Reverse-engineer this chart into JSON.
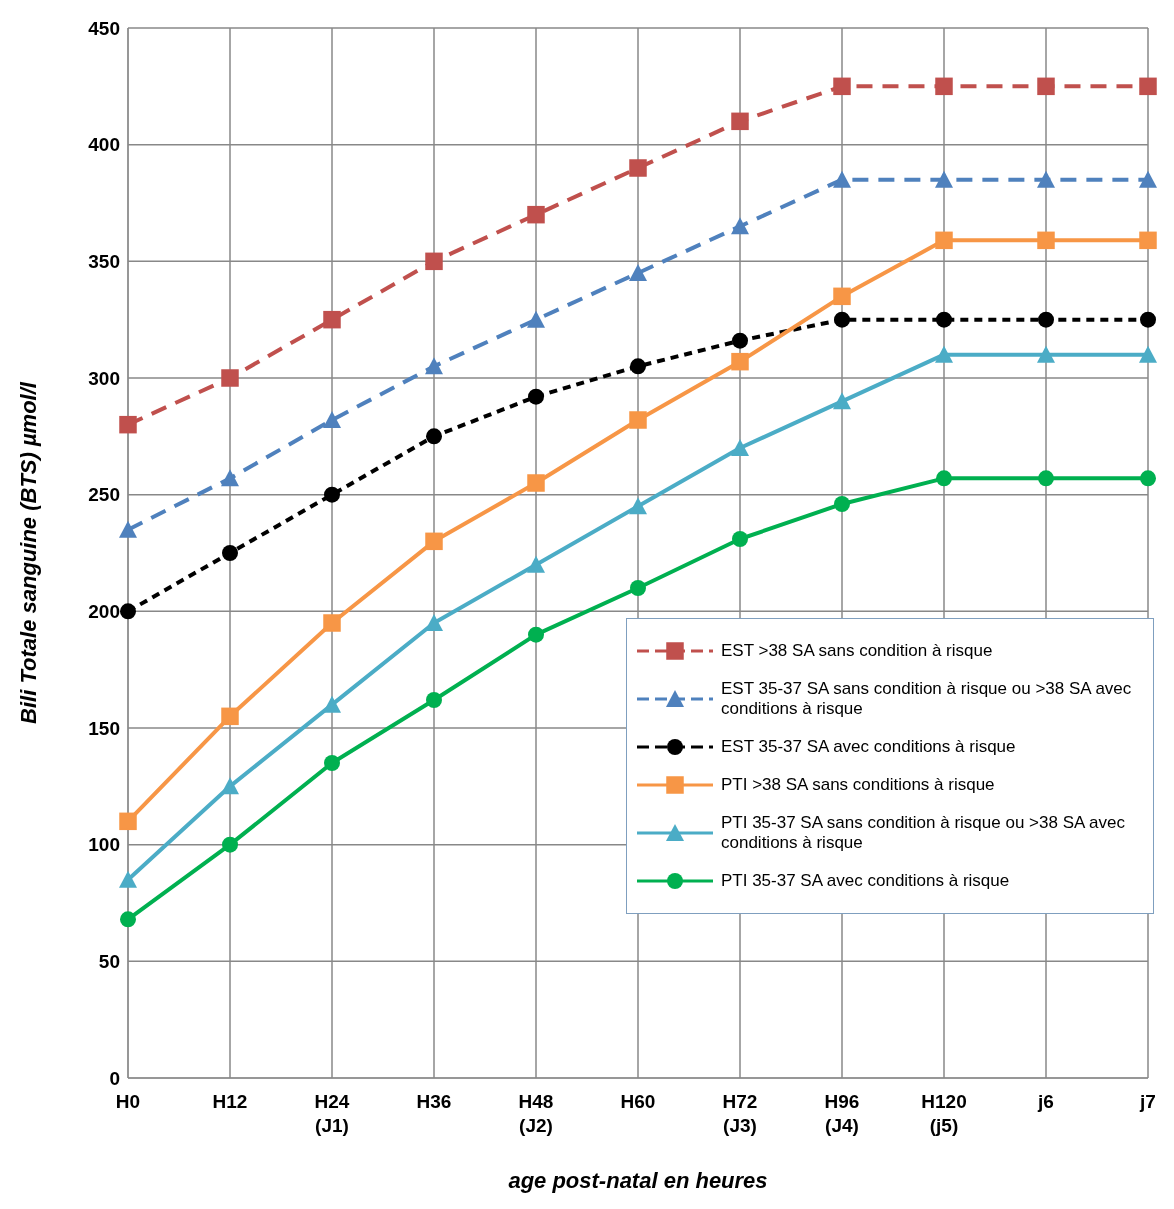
{
  "chart_data": {
    "type": "line",
    "xlabel": "age post-natal en heures",
    "ylabel": "Bili Totale sanguine (BTS) µmol/l",
    "categories": [
      "H0",
      "H12",
      "H24 (J1)",
      "H36",
      "H48 (J2)",
      "H60",
      "H72 (J3)",
      "H96 (J4)",
      "H120 (j5)",
      "j6",
      "j7"
    ],
    "ylim": [
      0,
      450
    ],
    "yticks": [
      0,
      50,
      100,
      150,
      200,
      250,
      300,
      350,
      400,
      450
    ],
    "grid": true,
    "legend": "bottom right",
    "series": [
      {
        "name": "EST >38 SA sans condition à risque",
        "color": "#c0504d",
        "marker": "square",
        "line_style": "dashed",
        "values": [
          280,
          300,
          325,
          350,
          370,
          390,
          410,
          425,
          425,
          425,
          425
        ]
      },
      {
        "name": "EST 35-37 SA sans condition à risque ou >38 SA avec conditions à risque",
        "color": "#4f81bd",
        "marker": "triangle",
        "line_style": "dashed",
        "values": [
          235,
          257,
          282,
          305,
          325,
          345,
          365,
          385,
          385,
          385,
          385
        ]
      },
      {
        "name": "EST 35-37 SA avec conditions à risque",
        "color": "#000000",
        "marker": "circle",
        "line_style": "dotted",
        "values": [
          200,
          225,
          250,
          275,
          292,
          305,
          316,
          325,
          325,
          325,
          325
        ]
      },
      {
        "name": "PTI >38 SA sans conditions à risque",
        "color": "#f79646",
        "marker": "square",
        "line_style": "solid",
        "values": [
          110,
          155,
          195,
          230,
          255,
          282,
          307,
          335,
          359,
          359,
          359
        ]
      },
      {
        "name": "PTI 35-37 SA sans condition à risque ou >38 SA avec conditions à risque",
        "color": "#4bacc6",
        "marker": "triangle",
        "line_style": "solid",
        "values": [
          85,
          125,
          160,
          195,
          220,
          245,
          270,
          290,
          310,
          310,
          310
        ]
      },
      {
        "name": "PTI 35-37 SA avec conditions à risque",
        "color": "#00b050",
        "marker": "circle",
        "line_style": "solid",
        "values": [
          68,
          100,
          135,
          162,
          190,
          210,
          231,
          246,
          257,
          257,
          257
        ]
      }
    ]
  }
}
